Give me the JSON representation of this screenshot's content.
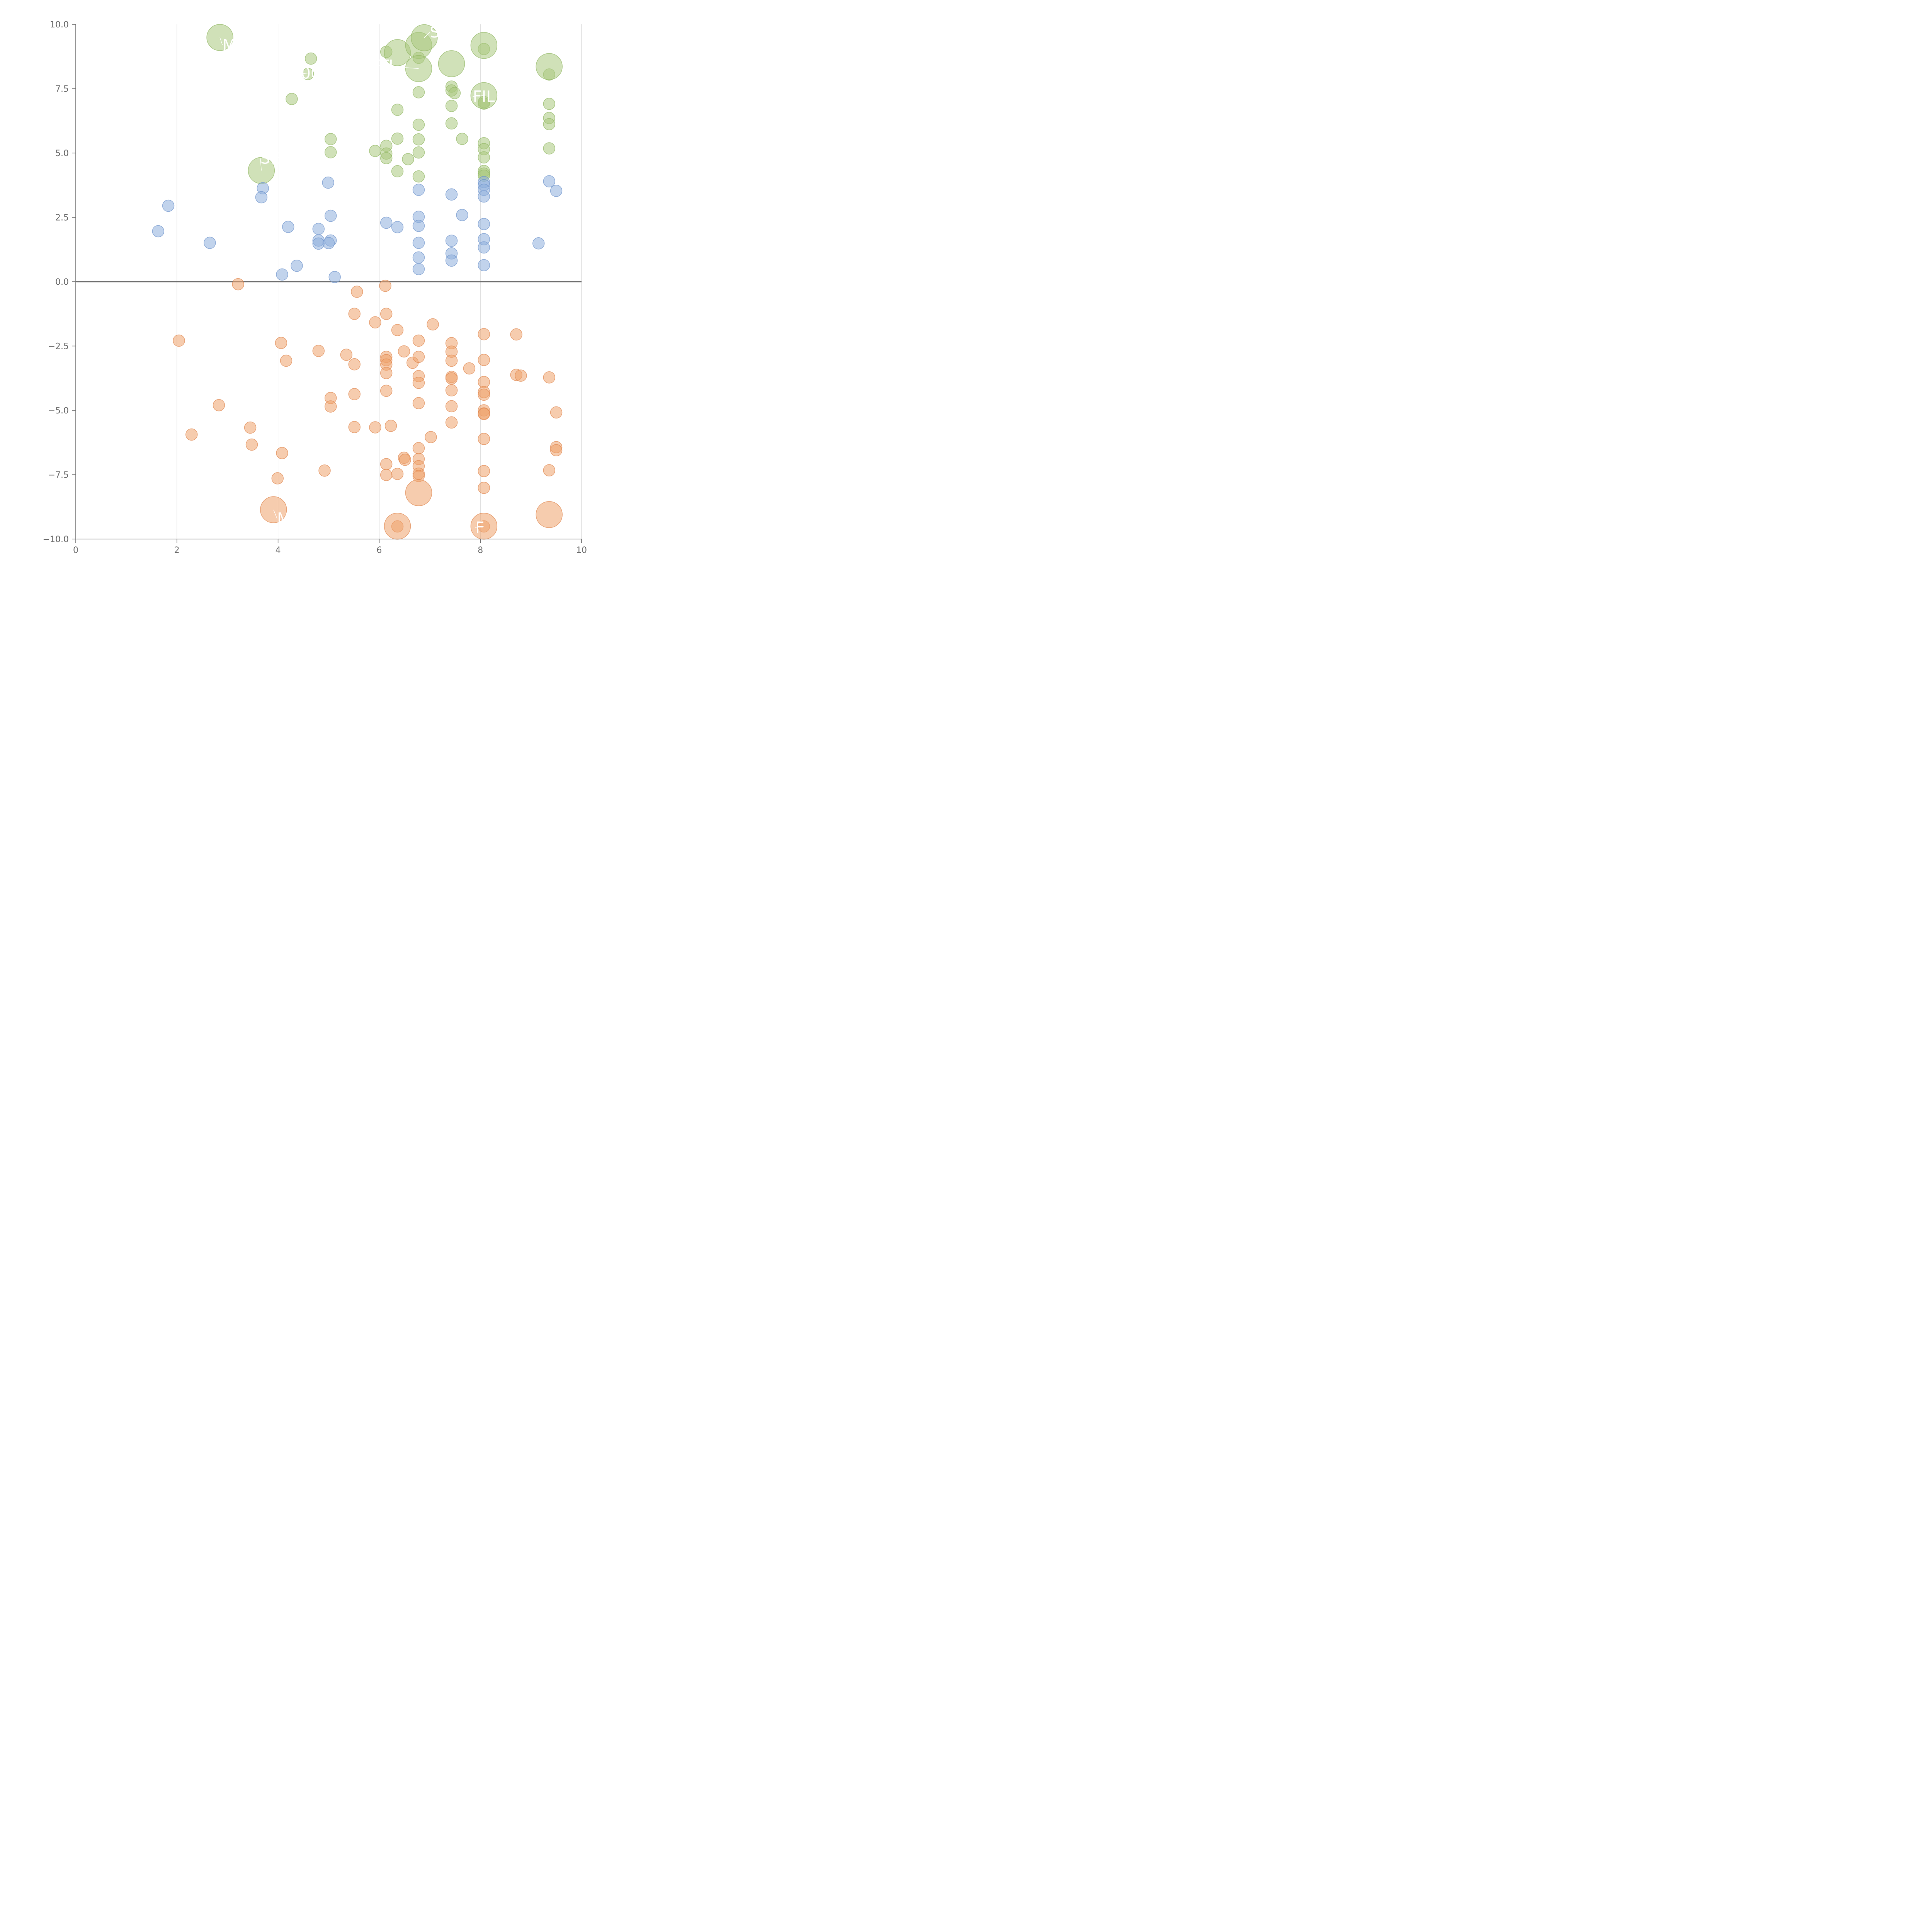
{
  "chart_data": {
    "type": "scatter",
    "title": "",
    "xlabel": "",
    "ylabel": "",
    "xlim": [
      0,
      10
    ],
    "ylim": [
      -10,
      10
    ],
    "grid": "vertical",
    "xticks": [
      0,
      2,
      4,
      6,
      8,
      10
    ],
    "yticks": [
      -10,
      -7.5,
      -5,
      -2.5,
      0,
      2.5,
      5,
      7.5,
      10
    ],
    "xtick_labels": [
      "0",
      "2",
      "4",
      "6",
      "8",
      "10"
    ],
    "ytick_labels": [
      "−10.0",
      "−7.5",
      "−5.0",
      "−2.5",
      "0.0",
      "2.5",
      "5.0",
      "7.5",
      "10.0"
    ],
    "reference_line_y": 0,
    "series": [
      {
        "name": "green",
        "color": "#a9c97e",
        "stroke": "#93b865",
        "points": [
          [
            4.65,
            8.67
          ],
          [
            4.59,
            8.07
          ],
          [
            4.27,
            7.1
          ],
          [
            5.04,
            5.54
          ],
          [
            5.04,
            5.03
          ],
          [
            6.14,
            8.93
          ],
          [
            6.78,
            8.7
          ],
          [
            6.78,
            7.36
          ],
          [
            6.36,
            6.68
          ],
          [
            6.36,
            5.56
          ],
          [
            5.92,
            5.08
          ],
          [
            6.14,
            5.28
          ],
          [
            6.14,
            4.98
          ],
          [
            6.14,
            4.8
          ],
          [
            6.57,
            4.76
          ],
          [
            6.36,
            4.29
          ],
          [
            6.78,
            6.1
          ],
          [
            6.78,
            5.53
          ],
          [
            6.78,
            5.02
          ],
          [
            6.78,
            4.09
          ],
          [
            7.43,
            7.58
          ],
          [
            7.43,
            7.43
          ],
          [
            7.49,
            7.33
          ],
          [
            7.43,
            6.83
          ],
          [
            7.43,
            6.15
          ],
          [
            7.64,
            5.55
          ],
          [
            8.07,
            9.04
          ],
          [
            8.07,
            6.98
          ],
          [
            8.07,
            6.92
          ],
          [
            8.07,
            5.38
          ],
          [
            8.07,
            5.15
          ],
          [
            8.07,
            4.83
          ],
          [
            8.07,
            4.3
          ],
          [
            8.07,
            4.2
          ],
          [
            8.07,
            4.12
          ],
          [
            9.36,
            8.05
          ],
          [
            9.36,
            6.91
          ],
          [
            9.36,
            6.36
          ],
          [
            9.36,
            6.12
          ],
          [
            9.36,
            5.18
          ]
        ],
        "large_points": [
          [
            2.85,
            9.49
          ],
          [
            3.67,
            4.32
          ],
          [
            6.36,
            8.9
          ],
          [
            6.78,
            9.18
          ],
          [
            6.89,
            9.48
          ],
          [
            6.78,
            8.28
          ],
          [
            7.43,
            8.47
          ],
          [
            8.07,
            9.18
          ],
          [
            8.07,
            7.23
          ],
          [
            9.36,
            8.36
          ]
        ]
      },
      {
        "name": "blue",
        "color": "#8eaedc",
        "stroke": "#6f94cc",
        "points": [
          [
            1.63,
            1.96
          ],
          [
            1.83,
            2.95
          ],
          [
            2.65,
            1.51
          ],
          [
            3.7,
            3.63
          ],
          [
            3.67,
            3.28
          ],
          [
            4.2,
            2.13
          ],
          [
            4.08,
            0.28
          ],
          [
            4.37,
            0.62
          ],
          [
            4.8,
            2.05
          ],
          [
            4.8,
            1.6
          ],
          [
            4.8,
            1.48
          ],
          [
            4.99,
            3.85
          ],
          [
            5.04,
            2.56
          ],
          [
            5.04,
            1.6
          ],
          [
            5.0,
            1.5
          ],
          [
            5.12,
            0.18
          ],
          [
            6.14,
            2.29
          ],
          [
            6.36,
            2.12
          ],
          [
            6.78,
            3.57
          ],
          [
            6.78,
            2.52
          ],
          [
            6.78,
            2.17
          ],
          [
            6.78,
            1.51
          ],
          [
            6.78,
            0.94
          ],
          [
            6.78,
            0.49
          ],
          [
            7.43,
            3.39
          ],
          [
            7.43,
            1.59
          ],
          [
            7.43,
            1.1
          ],
          [
            7.43,
            0.82
          ],
          [
            7.64,
            2.59
          ],
          [
            8.07,
            3.87
          ],
          [
            8.07,
            3.75
          ],
          [
            8.07,
            3.57
          ],
          [
            8.07,
            3.31
          ],
          [
            8.07,
            2.24
          ],
          [
            8.07,
            1.65
          ],
          [
            8.07,
            1.33
          ],
          [
            8.07,
            0.64
          ],
          [
            9.15,
            1.49
          ],
          [
            9.36,
            3.9
          ],
          [
            9.5,
            3.53
          ]
        ],
        "large_points": []
      },
      {
        "name": "orange",
        "color": "#eea26c",
        "stroke": "#df8850",
        "points": [
          [
            3.21,
            -0.1
          ],
          [
            2.04,
            -2.29
          ],
          [
            2.83,
            -4.8
          ],
          [
            2.29,
            -5.94
          ],
          [
            3.45,
            -5.67
          ],
          [
            3.48,
            -6.33
          ],
          [
            4.06,
            -2.38
          ],
          [
            4.16,
            -3.07
          ],
          [
            4.08,
            -6.66
          ],
          [
            3.99,
            -7.64
          ],
          [
            4.8,
            -2.69
          ],
          [
            5.04,
            -4.52
          ],
          [
            5.04,
            -4.85
          ],
          [
            4.92,
            -7.34
          ],
          [
            5.35,
            -2.84
          ],
          [
            5.51,
            -3.21
          ],
          [
            5.51,
            -1.25
          ],
          [
            5.56,
            -0.39
          ],
          [
            5.51,
            -4.37
          ],
          [
            5.51,
            -5.65
          ],
          [
            5.92,
            -1.58
          ],
          [
            5.92,
            -5.66
          ],
          [
            6.12,
            -0.16
          ],
          [
            6.14,
            -1.25
          ],
          [
            6.14,
            -2.92
          ],
          [
            6.14,
            -3.05
          ],
          [
            6.14,
            -3.22
          ],
          [
            6.14,
            -3.55
          ],
          [
            6.14,
            -4.24
          ],
          [
            6.23,
            -5.6
          ],
          [
            6.14,
            -7.09
          ],
          [
            6.14,
            -7.51
          ],
          [
            6.36,
            -1.88
          ],
          [
            6.49,
            -2.71
          ],
          [
            6.66,
            -3.15
          ],
          [
            6.36,
            -7.47
          ],
          [
            6.49,
            -6.84
          ],
          [
            6.51,
            -6.92
          ],
          [
            7.06,
            -1.66
          ],
          [
            6.78,
            -2.29
          ],
          [
            6.78,
            -2.92
          ],
          [
            6.78,
            -3.67
          ],
          [
            6.78,
            -3.93
          ],
          [
            6.78,
            -4.72
          ],
          [
            6.78,
            -6.47
          ],
          [
            6.78,
            -6.89
          ],
          [
            6.78,
            -7.17
          ],
          [
            6.78,
            -7.46
          ],
          [
            6.78,
            -7.55
          ],
          [
            7.02,
            -6.04
          ],
          [
            7.43,
            -2.39
          ],
          [
            7.43,
            -2.72
          ],
          [
            7.43,
            -3.07
          ],
          [
            7.43,
            -3.7
          ],
          [
            7.43,
            -3.76
          ],
          [
            7.43,
            -4.22
          ],
          [
            7.43,
            -4.84
          ],
          [
            7.43,
            -5.47
          ],
          [
            7.78,
            -3.37
          ],
          [
            8.07,
            -2.04
          ],
          [
            8.07,
            -3.04
          ],
          [
            8.07,
            -3.9
          ],
          [
            8.07,
            -4.29
          ],
          [
            8.07,
            -4.39
          ],
          [
            8.07,
            -5.0
          ],
          [
            8.07,
            -5.12
          ],
          [
            8.07,
            -5.14
          ],
          [
            8.07,
            -6.11
          ],
          [
            8.07,
            -7.36
          ],
          [
            8.07,
            -8.01
          ],
          [
            8.71,
            -2.05
          ],
          [
            8.71,
            -3.62
          ],
          [
            8.8,
            -3.65
          ],
          [
            9.36,
            -3.72
          ],
          [
            9.5,
            -5.08
          ],
          [
            9.5,
            -6.43
          ],
          [
            9.5,
            -6.55
          ],
          [
            9.36,
            -7.33
          ],
          [
            6.36,
            -9.51
          ],
          [
            8.07,
            -9.51
          ]
        ],
        "large_points": [
          [
            3.91,
            -8.86
          ],
          [
            6.78,
            -8.2
          ],
          [
            6.36,
            -9.5
          ],
          [
            8.07,
            -9.5
          ],
          [
            9.36,
            -9.05
          ]
        ]
      }
    ],
    "annotations": [
      {
        "text": "M",
        "series": "green",
        "point": [
          2.85,
          9.49
        ],
        "anchor": [
          2.9,
          9.2
        ]
      },
      {
        "text": "S",
        "series": "green",
        "point": [
          6.89,
          9.48
        ],
        "anchor": [
          7.0,
          9.7
        ]
      },
      {
        "text": "00",
        "series": "green",
        "point": [
          4.59,
          8.07
        ],
        "anchor": [
          4.45,
          8.1
        ]
      },
      {
        "text": "TL",
        "series": "green",
        "point": [
          6.78,
          8.28
        ],
        "anchor": [
          6.0,
          8.4
        ]
      },
      {
        "text": "FIL",
        "series": "green",
        "point": [
          8.07,
          7.23
        ],
        "anchor": [
          7.85,
          7.2
        ]
      },
      {
        "text": "SE",
        "series": "green",
        "point": [
          3.67,
          4.32
        ],
        "anchor": [
          3.65,
          4.8
        ]
      },
      {
        "text": "M",
        "series": "orange",
        "point": [
          3.91,
          -8.86
        ],
        "anchor": [
          3.98,
          -9.2
        ]
      },
      {
        "text": "F",
        "series": "orange",
        "point": [
          8.07,
          -9.5
        ],
        "anchor": [
          7.9,
          -9.55
        ]
      }
    ]
  }
}
